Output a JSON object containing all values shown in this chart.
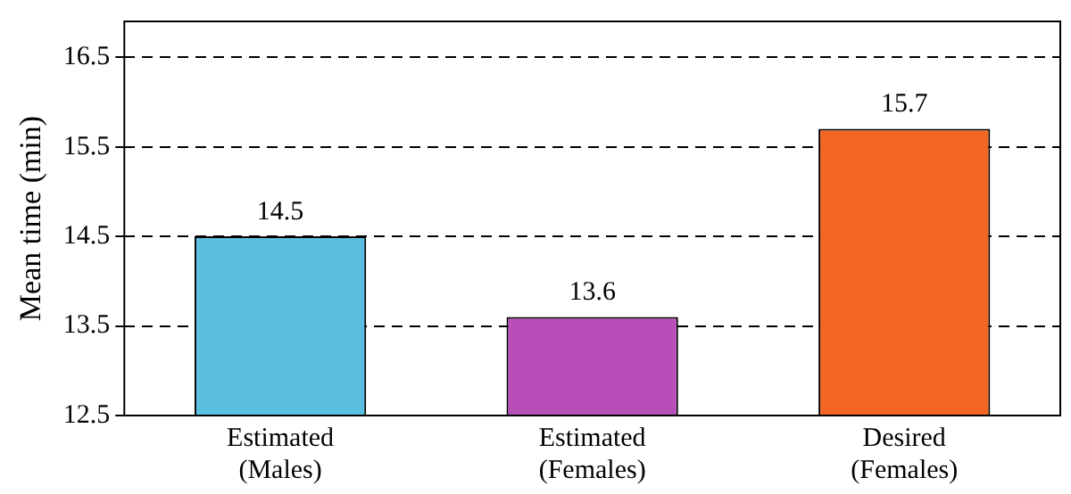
{
  "chart_data": {
    "type": "bar",
    "ylabel": "Mean time (min)",
    "categories": [
      "Estimated\n(Males)",
      "Estimated\n(Females)",
      "Desired\n(Females)"
    ],
    "values": [
      14.5,
      13.6,
      15.7
    ],
    "colors": [
      "#5bc0e0",
      "#b84fb8",
      "#f26522"
    ],
    "ylim": [
      12.5,
      16.9
    ],
    "yticks": [
      12.5,
      13.5,
      14.5,
      15.5,
      16.5
    ],
    "grid": "y",
    "data_labels": true,
    "legend": false
  }
}
